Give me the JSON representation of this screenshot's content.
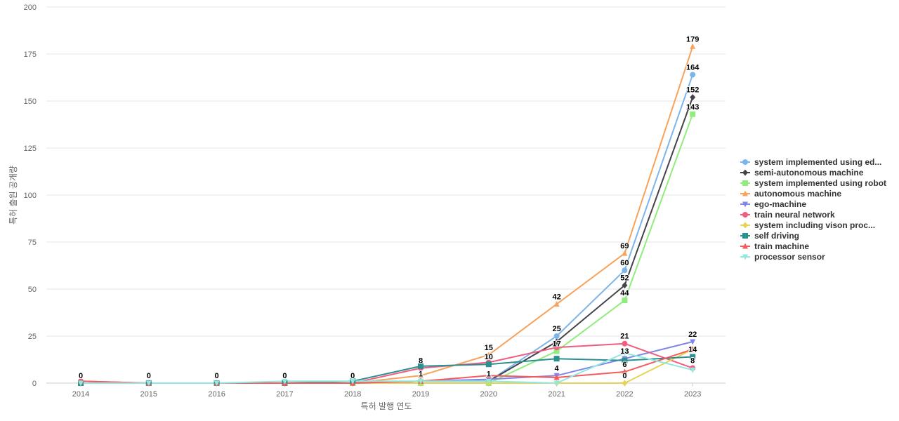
{
  "chart_data": {
    "type": "line",
    "title": "",
    "xlabel": "특허 발행 연도",
    "ylabel": "특허 출원 공개량",
    "x": [
      "2014",
      "2015",
      "2016",
      "2017",
      "2018",
      "2019",
      "2020",
      "2021",
      "2022",
      "2023"
    ],
    "ylim": [
      0,
      200
    ],
    "yticks": [
      0,
      25,
      50,
      75,
      100,
      125,
      150,
      175,
      200
    ],
    "grid": true,
    "legend_position": "right",
    "series": [
      {
        "name": "system implemented using ed...",
        "color": "#7cb5ec",
        "marker": "circle",
        "values": [
          0,
          0,
          0,
          0,
          0,
          1,
          1,
          25,
          60,
          164
        ]
      },
      {
        "name": "semi-autonomous machine",
        "color": "#434348",
        "marker": "diamond",
        "values": [
          0,
          0,
          0,
          0,
          0,
          1,
          1,
          22,
          52,
          152
        ]
      },
      {
        "name": "system implemented using robot",
        "color": "#90ed7d",
        "marker": "square",
        "values": [
          0,
          0,
          0,
          0,
          0,
          0,
          0,
          17,
          44,
          143
        ]
      },
      {
        "name": "autonomous machine",
        "color": "#f7a35c",
        "marker": "triangle",
        "values": [
          0,
          0,
          0,
          0,
          0,
          4,
          15,
          42,
          69,
          179
        ]
      },
      {
        "name": "ego-machine",
        "color": "#8085e9",
        "marker": "triangle-down",
        "values": [
          0,
          0,
          0,
          0,
          0,
          1,
          2,
          4,
          13,
          22
        ]
      },
      {
        "name": "train neural network",
        "color": "#f15c80",
        "marker": "circle",
        "values": [
          1,
          0,
          0,
          0,
          0,
          8,
          11,
          19,
          21,
          8
        ]
      },
      {
        "name": "system including vison proc...",
        "color": "#e4d354",
        "marker": "diamond",
        "values": [
          0,
          0,
          0,
          0,
          0,
          0,
          0,
          0,
          0,
          18
        ]
      },
      {
        "name": "self driving",
        "color": "#2b908f",
        "marker": "square",
        "values": [
          0,
          0,
          0,
          0,
          1,
          9,
          10,
          13,
          12,
          14
        ]
      },
      {
        "name": "train machine",
        "color": "#f45b5b",
        "marker": "triangle",
        "values": [
          1,
          0,
          0,
          0,
          0,
          1,
          4,
          3,
          6,
          18
        ]
      },
      {
        "name": "processor sensor",
        "color": "#91e8e1",
        "marker": "triangle-down",
        "values": [
          0,
          0,
          0,
          1,
          1,
          1,
          1,
          0,
          16,
          7
        ]
      }
    ],
    "data_labels": [
      {
        "x": "2014",
        "y": 0,
        "text": "0"
      },
      {
        "x": "2015",
        "y": 0,
        "text": "0"
      },
      {
        "x": "2016",
        "y": 0,
        "text": "0"
      },
      {
        "x": "2017",
        "y": 0,
        "text": "0"
      },
      {
        "x": "2018",
        "y": 0,
        "text": "0"
      },
      {
        "x": "2019",
        "y": 8,
        "text": "8"
      },
      {
        "x": "2019",
        "y": 1,
        "text": "1"
      },
      {
        "x": "2020",
        "y": 15,
        "text": "15"
      },
      {
        "x": "2020",
        "y": 10,
        "text": "10"
      },
      {
        "x": "2020",
        "y": 1,
        "text": "1"
      },
      {
        "x": "2021",
        "y": 42,
        "text": "42"
      },
      {
        "x": "2021",
        "y": 25,
        "text": "25"
      },
      {
        "x": "2021",
        "y": 17,
        "text": "17"
      },
      {
        "x": "2021",
        "y": 4,
        "text": "4"
      },
      {
        "x": "2022",
        "y": 69,
        "text": "69"
      },
      {
        "x": "2022",
        "y": 60,
        "text": "60"
      },
      {
        "x": "2022",
        "y": 52,
        "text": "52"
      },
      {
        "x": "2022",
        "y": 44,
        "text": "44"
      },
      {
        "x": "2022",
        "y": 21,
        "text": "21"
      },
      {
        "x": "2022",
        "y": 13,
        "text": "13"
      },
      {
        "x": "2022",
        "y": 6,
        "text": "6"
      },
      {
        "x": "2022",
        "y": 0,
        "text": "0"
      },
      {
        "x": "2023",
        "y": 179,
        "text": "179"
      },
      {
        "x": "2023",
        "y": 164,
        "text": "164"
      },
      {
        "x": "2023",
        "y": 152,
        "text": "152"
      },
      {
        "x": "2023",
        "y": 143,
        "text": "143"
      },
      {
        "x": "2023",
        "y": 22,
        "text": "22"
      },
      {
        "x": "2023",
        "y": 14,
        "text": "14"
      },
      {
        "x": "2023",
        "y": 8,
        "text": "8"
      }
    ]
  }
}
